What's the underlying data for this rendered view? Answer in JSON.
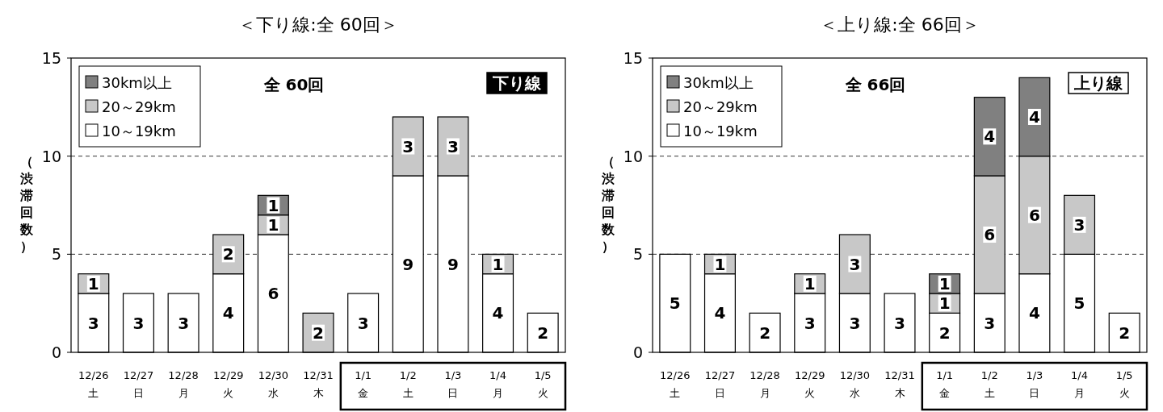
{
  "chart_data": [
    {
      "type": "bar",
      "stacked": true,
      "title": "＜下り線:全 60回＞",
      "ylabel": "（渋滞回数）",
      "categories": [
        "12/26 土",
        "12/27 日",
        "12/28 月",
        "12/29 火",
        "12/30 水",
        "12/31 木",
        "1/1 金",
        "1/2 土",
        "1/3 日",
        "1/4 月",
        "1/5 火"
      ],
      "series": [
        {
          "name": "10～19km",
          "color": "#ffffff",
          "values": [
            3,
            3,
            3,
            4,
            6,
            null,
            3,
            9,
            9,
            4,
            2
          ]
        },
        {
          "name": "20～29km",
          "color": "#c8c8c8",
          "values": [
            1,
            null,
            null,
            2,
            1,
            2,
            null,
            3,
            3,
            1,
            null
          ]
        },
        {
          "name": "30km以上",
          "color": "#808080",
          "values": [
            null,
            null,
            null,
            null,
            1,
            null,
            null,
            null,
            null,
            null,
            null
          ]
        }
      ],
      "ylim": [
        0,
        15
      ],
      "yticks": [
        0,
        5,
        10,
        15
      ],
      "grid": "y",
      "legend": "top left",
      "data_labels": true,
      "annotations": [
        "全 60回",
        "下り線"
      ]
    },
    {
      "type": "bar",
      "stacked": true,
      "title": "＜上り線:全 66回＞",
      "ylabel": "（渋滞回数）",
      "categories": [
        "12/26 土",
        "12/27 日",
        "12/28 月",
        "12/29 火",
        "12/30 水",
        "12/31 木",
        "1/1 金",
        "1/2 土",
        "1/3 日",
        "1/4 月",
        "1/5 火"
      ],
      "series": [
        {
          "name": "10～19km",
          "color": "#ffffff",
          "values": [
            5,
            4,
            2,
            3,
            3,
            3,
            2,
            3,
            4,
            5,
            2
          ]
        },
        {
          "name": "20～29km",
          "color": "#c8c8c8",
          "values": [
            null,
            1,
            null,
            1,
            3,
            null,
            1,
            6,
            6,
            3,
            null
          ]
        },
        {
          "name": "30km以上",
          "color": "#808080",
          "values": [
            null,
            null,
            null,
            null,
            null,
            null,
            1,
            4,
            4,
            null,
            null
          ]
        }
      ],
      "ylim": [
        0,
        15
      ],
      "yticks": [
        0,
        5,
        10,
        15
      ],
      "grid": "y",
      "legend": "top left",
      "data_labels": true,
      "annotations": [
        "全 66回",
        "上り線"
      ]
    }
  ]
}
